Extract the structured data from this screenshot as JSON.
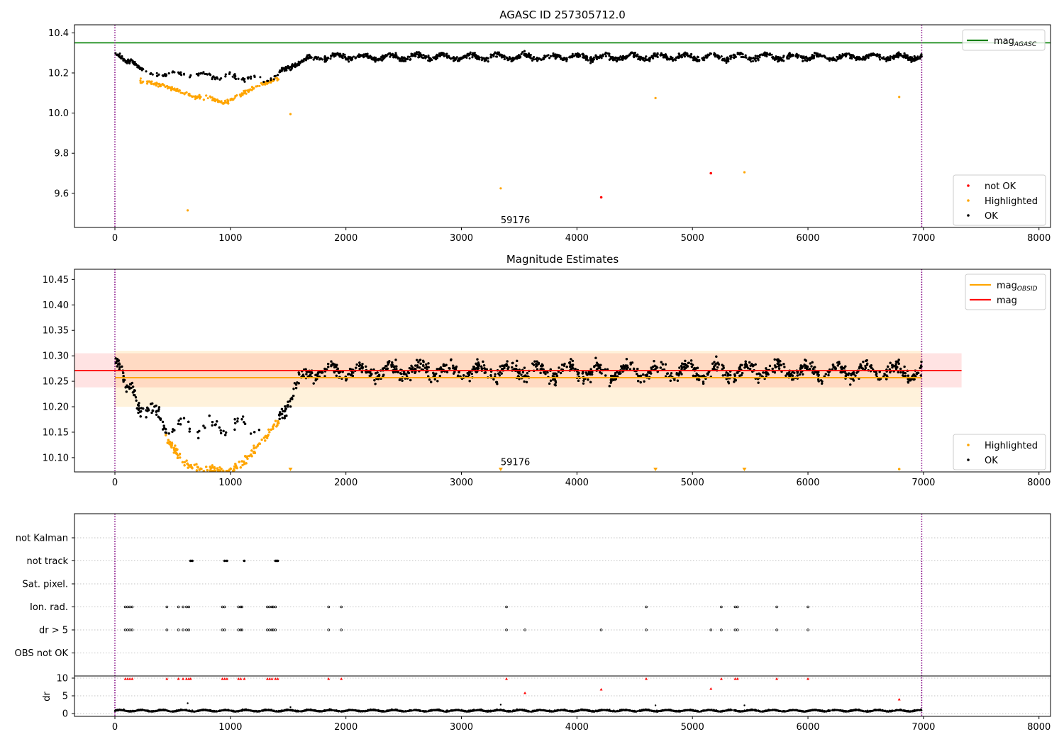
{
  "chart_data": [
    {
      "id": "p1",
      "type": "scatter",
      "title": "AGASC ID 257305712.0",
      "xlim": [
        -350,
        8100
      ],
      "ylim": [
        9.43,
        10.44
      ],
      "xticks": [
        "0",
        "1000",
        "2000",
        "3000",
        "4000",
        "5000",
        "6000",
        "7000",
        "8000"
      ],
      "yticks": [
        "9.6",
        "9.8",
        "10.0",
        "10.2",
        "10.4"
      ],
      "reference_lines": [
        {
          "orientation": "horizontal",
          "y": 10.35,
          "color": "#008000",
          "style": "solid"
        },
        {
          "orientation": "vertical",
          "x": 0,
          "color": "#800080",
          "style": "dotted"
        },
        {
          "orientation": "vertical",
          "x": 6985,
          "color": "#800080",
          "style": "dotted"
        }
      ],
      "annotation": {
        "text": "59176",
        "x": 3340,
        "y": 9.465
      },
      "legend_upper": {
        "position": "top-right",
        "entries": [
          {
            "label": "mag",
            "sub": "AGASC",
            "color": "#008000",
            "marker": "line"
          }
        ]
      },
      "legend_lower": {
        "position": "bottom-right",
        "entries": [
          {
            "label": "not OK",
            "color": "#ff0000",
            "marker": "dot"
          },
          {
            "label": "Highlighted",
            "color": "#ffa500",
            "marker": "dot"
          },
          {
            "label": "OK",
            "color": "#000000",
            "marker": "dot"
          }
        ]
      },
      "series": [
        {
          "name": "OK",
          "color": "#000000",
          "trend": [
            [
              0,
              10.3
            ],
            [
              50,
              10.27
            ],
            [
              100,
              10.25
            ],
            [
              150,
              10.27
            ],
            [
              200,
              10.24
            ],
            [
              260,
              10.2
            ],
            [
              300,
              10.19
            ],
            [
              400,
              10.19
            ],
            [
              430,
              10.2
            ],
            [
              1300,
              10.17
            ],
            [
              1400,
              10.19
            ],
            [
              1500,
              10.22
            ],
            [
              1600,
              10.26
            ],
            [
              1700,
              10.27
            ],
            [
              1800,
              10.28
            ],
            [
              6985,
              10.28
            ]
          ],
          "note": "dense light curve; ~10.19-10.33 after ~1700"
        },
        {
          "name": "Highlighted",
          "color": "#ffa500",
          "trend": [
            [
              220,
              10.16
            ],
            [
              400,
              10.14
            ],
            [
              500,
              10.12
            ],
            [
              600,
              10.1
            ],
            [
              700,
              10.08
            ],
            [
              800,
              10.08
            ],
            [
              950,
              10.05
            ],
            [
              1050,
              10.08
            ],
            [
              1150,
              10.11
            ],
            [
              1300,
              10.15
            ],
            [
              1400,
              10.17
            ]
          ],
          "isolated": [
            [
              630,
              9.515
            ],
            [
              1520,
              9.995
            ],
            [
              3340,
              9.625
            ],
            [
              4680,
              10.075
            ],
            [
              5450,
              9.705
            ],
            [
              6790,
              10.08
            ]
          ]
        },
        {
          "name": "not OK",
          "color": "#ff0000",
          "points": [
            [
              4210,
              9.58
            ],
            [
              5160,
              9.7
            ]
          ]
        }
      ]
    },
    {
      "id": "p2",
      "type": "scatter",
      "title": "Magnitude Estimates",
      "xlim": [
        -350,
        8100
      ],
      "ylim": [
        10.072,
        10.47
      ],
      "xticks": [
        "0",
        "1000",
        "2000",
        "3000",
        "4000",
        "5000",
        "6000",
        "7000",
        "8000"
      ],
      "yticks": [
        "10.10",
        "10.15",
        "10.20",
        "10.25",
        "10.30",
        "10.35",
        "10.40",
        "10.45"
      ],
      "mag_obsid": {
        "value": 10.257,
        "band": [
          10.2,
          10.31
        ],
        "x_range": [
          0,
          6985
        ],
        "color": "#ffa500"
      },
      "mag": {
        "value": 10.271,
        "band": [
          10.238,
          10.305
        ],
        "x_range": [
          -350,
          7330
        ],
        "color": "#ff0000"
      },
      "annotation": {
        "text": "59176",
        "x": 3340,
        "y": 10.08
      },
      "legend_upper": {
        "position": "top-right",
        "entries": [
          {
            "label": "mag",
            "sub": "OBSID",
            "color": "#ffa500",
            "marker": "line"
          },
          {
            "label": "mag",
            "sub": "",
            "color": "#ff0000",
            "marker": "line"
          }
        ]
      },
      "legend_lower": {
        "position": "bottom-right",
        "entries": [
          {
            "label": "Highlighted",
            "color": "#ffa500",
            "marker": "dot"
          },
          {
            "label": "OK",
            "color": "#000000",
            "marker": "dot"
          }
        ]
      },
      "series": [
        {
          "name": "OK",
          "color": "#000000",
          "trend": [
            [
              0,
              10.3
            ],
            [
              50,
              10.27
            ],
            [
              100,
              10.23
            ],
            [
              150,
              10.25
            ],
            [
              200,
              10.21
            ],
            [
              260,
              10.19
            ],
            [
              400,
              10.18
            ],
            [
              460,
              10.16
            ],
            [
              1250,
              10.16
            ],
            [
              1400,
              10.18
            ],
            [
              1500,
              10.21
            ],
            [
              1600,
              10.25
            ],
            [
              1700,
              10.27
            ],
            [
              6985,
              10.27
            ]
          ]
        },
        {
          "name": "Highlighted",
          "color": "#ffa500",
          "trend": [
            [
              440,
              10.14
            ],
            [
              500,
              10.12
            ],
            [
              600,
              10.09
            ],
            [
              700,
              10.08
            ],
            [
              800,
              10.075
            ],
            [
              1000,
              10.075
            ],
            [
              1100,
              10.09
            ],
            [
              1200,
              10.11
            ],
            [
              1300,
              10.14
            ],
            [
              1400,
              10.17
            ]
          ],
          "clipped_markers_x": [
            1520,
            3340,
            4680,
            5450
          ]
        }
      ]
    },
    {
      "id": "p3",
      "type": "scatter",
      "title": "",
      "xlim": [
        -350,
        8100
      ],
      "categories": [
        "not Kalman",
        "not track",
        "Sat. pixel.",
        "Ion. rad.",
        "dr > 5",
        "OBS not OK"
      ],
      "flag_points": {
        "not track": [
          655,
          670,
          950,
          970,
          1120,
          1390,
          1400,
          1410
        ],
        "Ion. rad.": [
          90,
          110,
          130,
          150,
          450,
          550,
          590,
          620,
          640,
          930,
          950,
          1070,
          1090,
          1100,
          1320,
          1340,
          1360,
          1370,
          1390,
          1850,
          1960,
          3390,
          4600,
          5250,
          5370,
          5390,
          5730,
          6000
        ],
        "dr > 5": [
          90,
          110,
          130,
          150,
          450,
          550,
          590,
          620,
          640,
          930,
          950,
          1070,
          1090,
          1100,
          1320,
          1340,
          1360,
          1370,
          1390,
          1850,
          1960,
          3390,
          3550,
          4210,
          4600,
          5160,
          5250,
          5370,
          5390,
          5730,
          6000
        ]
      },
      "sub_panel": {
        "ylabel": "dr",
        "ylim": [
          -0.8,
          10.6
        ],
        "yticks": [
          "0",
          "5",
          "10"
        ],
        "baseline": [
          0,
          1.6
        ],
        "red_points": [
          [
            90,
            9.8
          ],
          [
            110,
            9.8
          ],
          [
            130,
            9.8
          ],
          [
            150,
            9.8
          ],
          [
            450,
            9.8
          ],
          [
            550,
            9.8
          ],
          [
            590,
            9.8
          ],
          [
            620,
            9.8
          ],
          [
            640,
            9.8
          ],
          [
            655,
            9.8
          ],
          [
            930,
            9.8
          ],
          [
            950,
            9.8
          ],
          [
            970,
            9.8
          ],
          [
            1070,
            9.8
          ],
          [
            1090,
            9.8
          ],
          [
            1120,
            9.8
          ],
          [
            1320,
            9.8
          ],
          [
            1340,
            9.8
          ],
          [
            1360,
            9.8
          ],
          [
            1390,
            9.8
          ],
          [
            1410,
            9.8
          ],
          [
            1850,
            9.8
          ],
          [
            1960,
            9.8
          ],
          [
            3390,
            9.8
          ],
          [
            3550,
            5.8
          ],
          [
            4210,
            6.8
          ],
          [
            4600,
            9.8
          ],
          [
            5160,
            7
          ],
          [
            5250,
            9.8
          ],
          [
            5370,
            9.8
          ],
          [
            5390,
            9.8
          ],
          [
            5730,
            9.8
          ],
          [
            6000,
            9.8
          ],
          [
            6790,
            4
          ]
        ],
        "black_points": [
          [
            630,
            2.9
          ],
          [
            1520,
            1.8
          ],
          [
            3340,
            2.5
          ],
          [
            4680,
            2.3
          ],
          [
            5450,
            2.3
          ]
        ]
      }
    }
  ]
}
